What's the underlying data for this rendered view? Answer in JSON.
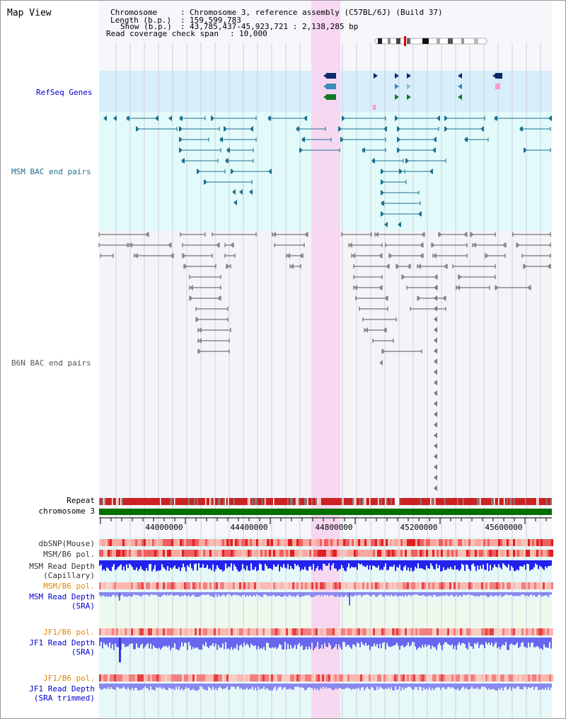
{
  "title": "Map View",
  "info": {
    "chromosome_key": "Chromosome",
    "chromosome_val": "Chromosome 3, reference assembly (C57BL/6J) (Build 37)",
    "length_key": "Length (b.p.)",
    "length_val": "159,599,783",
    "show_key": "Show (b.p.)",
    "show_val": "43,785,437-45,923,721 : 2,138,285 bp",
    "coverage_key": "Read coverage check span",
    "coverage_val": "10,000"
  },
  "tracks": {
    "refseq": {
      "label": "RefSeq Genes",
      "color": "#0000cc"
    },
    "msm_bac": {
      "label": "MSM BAC end pairs",
      "color": "#1a6f8f"
    },
    "b6n_bac": {
      "label": "B6N BAC end pairs",
      "color": "#555555"
    },
    "repeat": {
      "label": "Repeat"
    },
    "chromosome": {
      "label": "chromosome 3"
    },
    "dbsnp": {
      "label": "dbSNP(Mouse)"
    },
    "msm_pol_cap": {
      "label": "MSM/B6 pol."
    },
    "msm_depth_cap": {
      "label1": "MSM Read Depth",
      "label2": "(Capillary)"
    },
    "msm_pol_sra": {
      "label": "MSM/B6 pol."
    },
    "msm_depth_sra": {
      "label1": "MSM Read Depth",
      "label2": "(SRA)"
    },
    "jf1_pol": {
      "label": "JF1/B6 pol."
    },
    "jf1_depth": {
      "label1": "JF1 Read Depth",
      "label2": "(SRA)"
    },
    "jf1_pol_trim": {
      "label": "JF1/B6 pol."
    },
    "jf1_depth_trim": {
      "label1": "JF1 Read Depth",
      "label2": "(SRA trimmed)"
    }
  },
  "ruler": {
    "ticks": [
      "44000000",
      "44400000",
      "44800000",
      "45200000",
      "45600000"
    ]
  },
  "colors": {
    "highlight": "#f8d4f0",
    "refseq_bg": "#d8eefa",
    "msm_bg": "#e2fafa",
    "chromosome_bar": "#007000",
    "repeat_red": "#cc2222",
    "depth_blue": "#2222ee",
    "depth_light": "#7777ee",
    "orange_label": "#e08800"
  }
}
